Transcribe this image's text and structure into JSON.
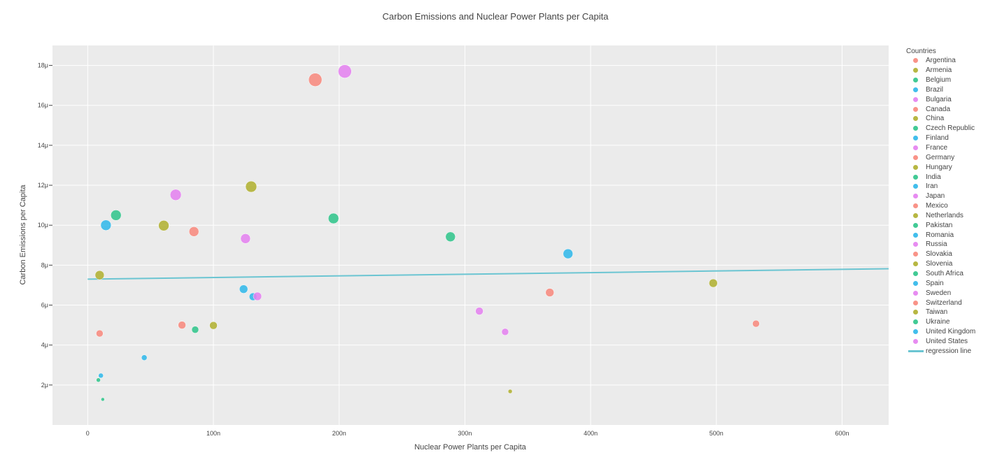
{
  "chart_data": {
    "type": "scatter",
    "title": "Carbon Emissions and Nuclear Power Plants per Capita",
    "xlabel": "Nuclear Power Plants per Capita",
    "ylabel": "Carbon Emissions per Capita",
    "xlim": [
      -28,
      637
    ],
    "ylim": [
      0.0,
      19.0
    ],
    "x_unit": "n",
    "y_unit": "μ",
    "x_ticks": [
      0,
      100,
      200,
      300,
      400,
      500,
      600
    ],
    "x_tick_labels": [
      "0",
      "100n",
      "200n",
      "300n",
      "400n",
      "500n",
      "600n"
    ],
    "y_ticks": [
      2,
      4,
      6,
      8,
      10,
      12,
      14,
      16,
      18
    ],
    "y_tick_labels": [
      "2μ",
      "4μ",
      "6μ",
      "8μ",
      "10μ",
      "12μ",
      "14μ",
      "16μ",
      "18μ"
    ],
    "grid": true,
    "legend_title": "Countries",
    "legend_position": "right",
    "series": [
      {
        "name": "Argentina",
        "color": "#F8877B",
        "points": [
          {
            "x": 9.5,
            "y": 4.58,
            "size": 10
          }
        ]
      },
      {
        "name": "Armenia",
        "color": "#AFAF2D",
        "points": [
          {
            "x": 336,
            "y": 1.68,
            "size": 6
          }
        ]
      },
      {
        "name": "Belgium",
        "color": "#2DC48A",
        "points": [
          {
            "x": 288.5,
            "y": 9.42,
            "size": 14
          }
        ]
      },
      {
        "name": "Brazil",
        "color": "#2DB7EA",
        "points": [
          {
            "x": 10.5,
            "y": 2.47,
            "size": 7
          }
        ]
      },
      {
        "name": "Bulgaria",
        "color": "#E47FF0",
        "points": [
          {
            "x": 311.5,
            "y": 5.7,
            "size": 11
          }
        ]
      },
      {
        "name": "Canada",
        "color": "#F8877B",
        "points": [
          {
            "x": 367.5,
            "y": 6.63,
            "size": 12
          }
        ]
      },
      {
        "name": "China",
        "color": "#AFAF2D",
        "points": [
          {
            "x": 9.5,
            "y": 7.5,
            "size": 13
          }
        ]
      },
      {
        "name": "Czech Republic",
        "color": "#2DC48A",
        "points": [
          {
            "x": 22.5,
            "y": 10.5,
            "size": 15
          }
        ]
      },
      {
        "name": "Finland",
        "color": "#2DB7EA",
        "points": [
          {
            "x": 382,
            "y": 8.57,
            "size": 14
          }
        ]
      },
      {
        "name": "France",
        "color": "#E47FF0",
        "points": [
          {
            "x": 332,
            "y": 4.66,
            "size": 10
          }
        ]
      },
      {
        "name": "Germany",
        "color": "#F8877B",
        "points": [
          {
            "x": 75,
            "y": 5.0,
            "size": 11
          }
        ]
      },
      {
        "name": "Hungary",
        "color": "#AFAF2D",
        "points": [
          {
            "x": 100,
            "y": 4.98,
            "size": 11
          }
        ]
      },
      {
        "name": "India",
        "color": "#2DC48A",
        "points": [
          {
            "x": 8.5,
            "y": 2.25,
            "size": 6
          }
        ]
      },
      {
        "name": "Iran",
        "color": "#2DB7EA",
        "points": [
          {
            "x": 45,
            "y": 3.37,
            "size": 8
          }
        ]
      },
      {
        "name": "Japan",
        "color": "#E47FF0",
        "points": [
          {
            "x": 70,
            "y": 11.52,
            "size": 16
          }
        ]
      },
      {
        "name": "Mexico",
        "color": "#F8877B",
        "points": [
          {
            "x": 531.5,
            "y": 5.07,
            "size": 10
          }
        ]
      },
      {
        "name": "Netherlands",
        "color": "#AFAF2D",
        "points": [
          {
            "x": 60.5,
            "y": 9.98,
            "size": 15
          }
        ]
      },
      {
        "name": "Pakistan",
        "color": "#2DC48A",
        "points": [
          {
            "x": 12,
            "y": 1.28,
            "size": 5
          }
        ]
      },
      {
        "name": "Romania",
        "color": "#2DB7EA",
        "points": [
          {
            "x": 124,
            "y": 6.8,
            "size": 12
          }
        ]
      },
      {
        "name": "Russia",
        "color": "#E47FF0",
        "points": [
          {
            "x": 125.5,
            "y": 9.33,
            "size": 14
          }
        ]
      },
      {
        "name": "Slovakia",
        "color": "#F8877B",
        "points": [
          {
            "x": 84.5,
            "y": 9.68,
            "size": 14
          }
        ]
      },
      {
        "name": "Slovenia",
        "color": "#AFAF2D",
        "points": [
          {
            "x": 497.5,
            "y": 7.1,
            "size": 12
          }
        ]
      },
      {
        "name": "South Africa",
        "color": "#2DC48A",
        "points": [
          {
            "x": 85.5,
            "y": 4.77,
            "size": 10
          }
        ]
      },
      {
        "name": "Spain",
        "color": "#2DB7EA",
        "points": [
          {
            "x": 131.5,
            "y": 6.42,
            "size": 11
          }
        ]
      },
      {
        "name": "Sweden",
        "color": "#E47FF0",
        "points": [
          {
            "x": 135,
            "y": 6.44,
            "size": 12
          }
        ]
      },
      {
        "name": "Switzerland",
        "color": "#F8877B",
        "points": [
          {
            "x": 181,
            "y": 17.28,
            "size": 19
          }
        ]
      },
      {
        "name": "Taiwan",
        "color": "#AFAF2D",
        "points": [
          {
            "x": 130,
            "y": 11.93,
            "size": 16
          }
        ]
      },
      {
        "name": "Ukraine",
        "color": "#2DC48A",
        "points": [
          {
            "x": 195.5,
            "y": 10.34,
            "size": 15
          }
        ]
      },
      {
        "name": "United Kingdom",
        "color": "#2DB7EA",
        "points": [
          {
            "x": 14.5,
            "y": 10.0,
            "size": 15
          }
        ]
      },
      {
        "name": "United States",
        "color": "#E47FF0",
        "points": [
          {
            "x": 204.5,
            "y": 17.7,
            "size": 19
          }
        ]
      }
    ],
    "regression_line": {
      "name": "regression line",
      "color": "#6BC5D2",
      "x": [
        0,
        637
      ],
      "y": [
        7.3,
        7.82
      ]
    }
  }
}
